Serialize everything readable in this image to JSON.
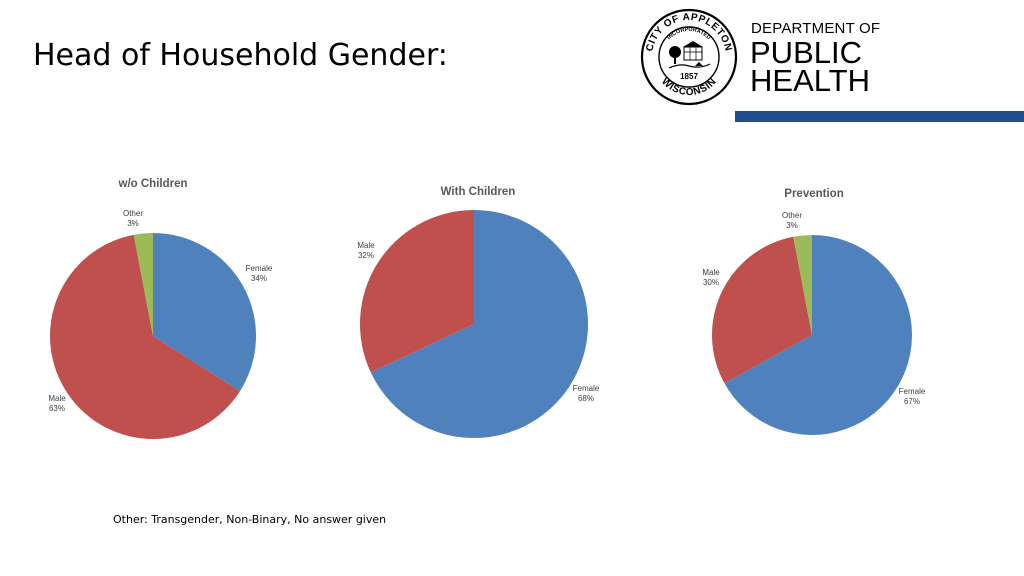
{
  "slide": {
    "title": "Head of Household Gender:",
    "footnote": "Other: Transgender, Non-Binary, No answer given"
  },
  "logo": {
    "seal_text_top": "CITY OF APPLETON",
    "seal_text_inner": "INCORPORATED",
    "seal_year": "1857",
    "seal_text_bottom": "WISCONSIN",
    "dept_line1": "DEPARTMENT OF",
    "dept_line2": "PUBLIC",
    "dept_line3": "HEALTH",
    "accent_color": "#1f4e8c"
  },
  "colors": {
    "Female": "#4f81bd",
    "Male": "#c0504d",
    "Other": "#9bbb59"
  },
  "chart_data": [
    {
      "type": "pie",
      "title": "w/o Children",
      "slices": [
        {
          "label": "Female",
          "value": 34,
          "display": "34%"
        },
        {
          "label": "Male",
          "value": 63,
          "display": "63%"
        },
        {
          "label": "Other",
          "value": 3,
          "display": "3%"
        }
      ]
    },
    {
      "type": "pie",
      "title": "With Children",
      "slices": [
        {
          "label": "Female",
          "value": 68,
          "display": "68%"
        },
        {
          "label": "Male",
          "value": 32,
          "display": "32%"
        }
      ]
    },
    {
      "type": "pie",
      "title": "Prevention",
      "slices": [
        {
          "label": "Female",
          "value": 67,
          "display": "67%"
        },
        {
          "label": "Male",
          "value": 30,
          "display": "30%"
        },
        {
          "label": "Other",
          "value": 3,
          "display": "3%"
        }
      ]
    }
  ]
}
